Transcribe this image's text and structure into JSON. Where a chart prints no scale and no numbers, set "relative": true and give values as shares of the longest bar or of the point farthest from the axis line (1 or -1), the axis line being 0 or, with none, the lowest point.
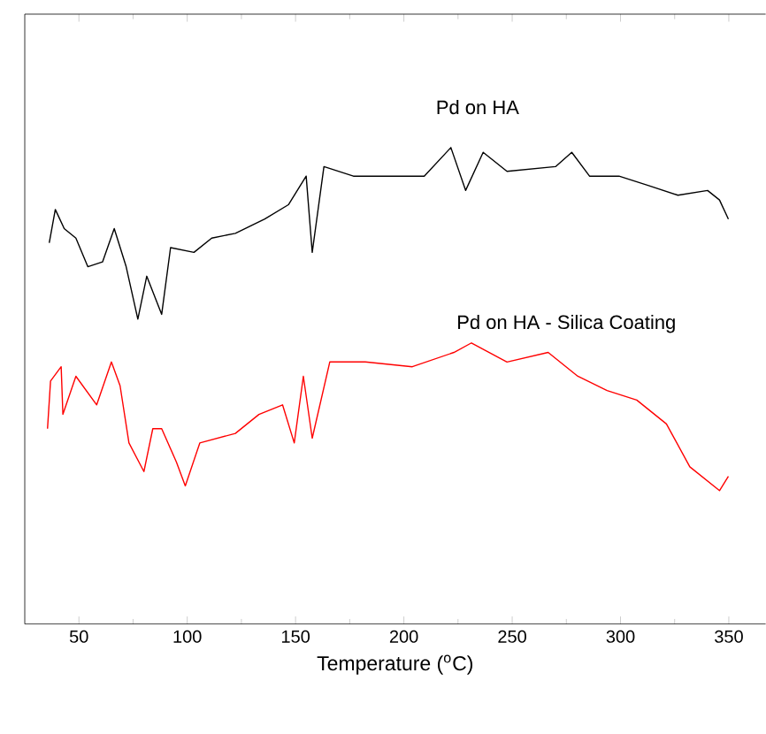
{
  "chart_data": {
    "type": "line",
    "xlabel": "Temperature ($^{o}$C)",
    "relative": true,
    "xlim": [
      25,
      367
    ],
    "xticks": [
      50,
      100,
      150,
      200,
      250,
      300,
      350
    ],
    "series": [
      {
        "name": "Pd on HA",
        "color": "#000000",
        "x": [
          36.3,
          39.1,
          43.2,
          48.6,
          54.1,
          60.9,
          66.3,
          71.8,
          77.2,
          81.3,
          88.2,
          92.3,
          103.1,
          111.3,
          122.2,
          135.8,
          146.7,
          154.9,
          157.7,
          163.1,
          176.7,
          190.4,
          209.4,
          221.7,
          228.5,
          236.6,
          247.6,
          270,
          277.5,
          285.7,
          299.3,
          313,
          326.5,
          340.2,
          345.7,
          349.8
        ],
        "values": [
          0.8,
          0.87,
          0.83,
          0.81,
          0.75,
          0.76,
          0.83,
          0.75,
          0.64,
          0.73,
          0.65,
          0.79,
          0.78,
          0.81,
          0.82,
          0.85,
          0.88,
          0.94,
          0.78,
          0.96,
          0.94,
          0.94,
          0.94,
          1.0,
          0.91,
          0.99,
          0.95,
          0.96,
          0.99,
          0.94,
          0.94,
          0.92,
          0.9,
          0.91,
          0.89,
          0.85
        ]
      },
      {
        "name": "Pd on HA - Silica Coating",
        "color": "#ff0000",
        "x": [
          35.5,
          36.9,
          41.8,
          42.6,
          48.6,
          58.2,
          65,
          69,
          73.1,
          80,
          84.1,
          88.2,
          95,
          99.1,
          105.8,
          122.2,
          133.1,
          144,
          149.4,
          153.6,
          157.7,
          165.8,
          182.2,
          203.9,
          223.1,
          231.2,
          247.6,
          266.6,
          280.3,
          293.8,
          307.5,
          321.2,
          332,
          345.7,
          349.8
        ],
        "values": [
          0.41,
          0.51,
          0.54,
          0.44,
          0.52,
          0.46,
          0.55,
          0.5,
          0.38,
          0.32,
          0.41,
          0.41,
          0.34,
          0.29,
          0.38,
          0.4,
          0.44,
          0.46,
          0.38,
          0.52,
          0.39,
          0.55,
          0.55,
          0.54,
          0.57,
          0.59,
          0.55,
          0.57,
          0.52,
          0.49,
          0.47,
          0.42,
          0.33,
          0.28,
          0.31
        ]
      }
    ]
  }
}
